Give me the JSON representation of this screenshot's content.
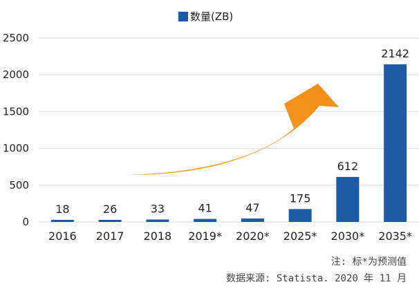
{
  "chart_data": {
    "type": "bar",
    "categories": [
      "2016",
      "2017",
      "2018",
      "2019*",
      "2020*",
      "2025*",
      "2030*",
      "2035*"
    ],
    "series": [
      {
        "name": "数量(ZB)",
        "values": [
          18,
          26,
          33,
          41,
          47,
          175,
          612,
          2142
        ]
      }
    ],
    "data_labels": [
      "18",
      "26",
      "33",
      "41",
      "47",
      "175",
      "612",
      "2142"
    ],
    "ylim": [
      0,
      2500
    ],
    "yticks": [
      0,
      500,
      1000,
      1500,
      2000,
      2500
    ],
    "grid": true,
    "legend_position": "top-center",
    "colors": {
      "bar": "#1f5aa6",
      "arrow": "#f5931e",
      "grid": "#d9d9d9"
    },
    "annotation": "upward-trend-arrow"
  },
  "notes": {
    "line1": "注: 标*为预测值",
    "line2": "数据来源: Statista. 2020 年 11 月"
  }
}
